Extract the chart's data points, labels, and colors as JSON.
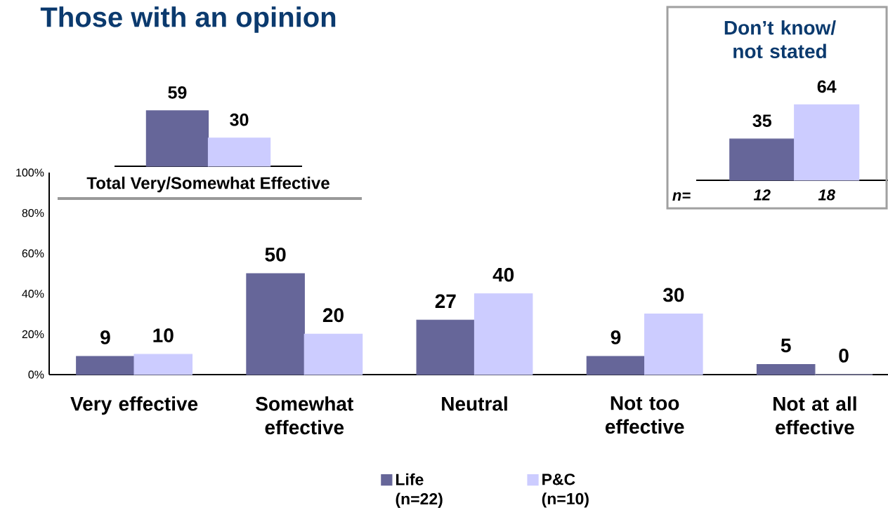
{
  "chart_data": [
    {
      "type": "bar",
      "categories": [
        "Very effective",
        "Somewhat effective",
        "Neutral",
        "Not too effective",
        "Not at all effective"
      ],
      "series": [
        {
          "name": "Life (n=22)",
          "color": "#666699",
          "values": [
            9,
            50,
            27,
            9,
            5
          ]
        },
        {
          "name": "P&C (n=10)",
          "color": "#ccccff",
          "values": [
            10,
            20,
            40,
            30,
            0
          ]
        }
      ],
      "ylim": [
        0,
        100
      ],
      "yticks": [
        {
          "value": 0,
          "label": "0%"
        },
        {
          "value": 20,
          "label": "20%"
        },
        {
          "value": 40,
          "label": "40%"
        },
        {
          "value": 60,
          "label": "60%"
        },
        {
          "value": 80,
          "label": "80%"
        },
        {
          "value": 100,
          "label": "100%"
        }
      ],
      "data_labels": true,
      "legend": "bottom"
    },
    {
      "type": "bar",
      "title": "Those with an opinion",
      "xlabel": "Total Very/Somewhat Effective",
      "categories": [
        null
      ],
      "series": [
        {
          "color": "#666699",
          "values": [
            59
          ]
        },
        {
          "color": "#ccccff",
          "values": [
            30
          ]
        }
      ],
      "data_labels": true
    },
    {
      "type": "bar",
      "title": "Don’t know/ not stated",
      "categories": [
        "12",
        "18"
      ],
      "values": [
        35,
        64
      ],
      "colors": [
        "#666699",
        "#ccccff"
      ],
      "annotations": [
        "n="
      ],
      "data_labels": true
    }
  ]
}
